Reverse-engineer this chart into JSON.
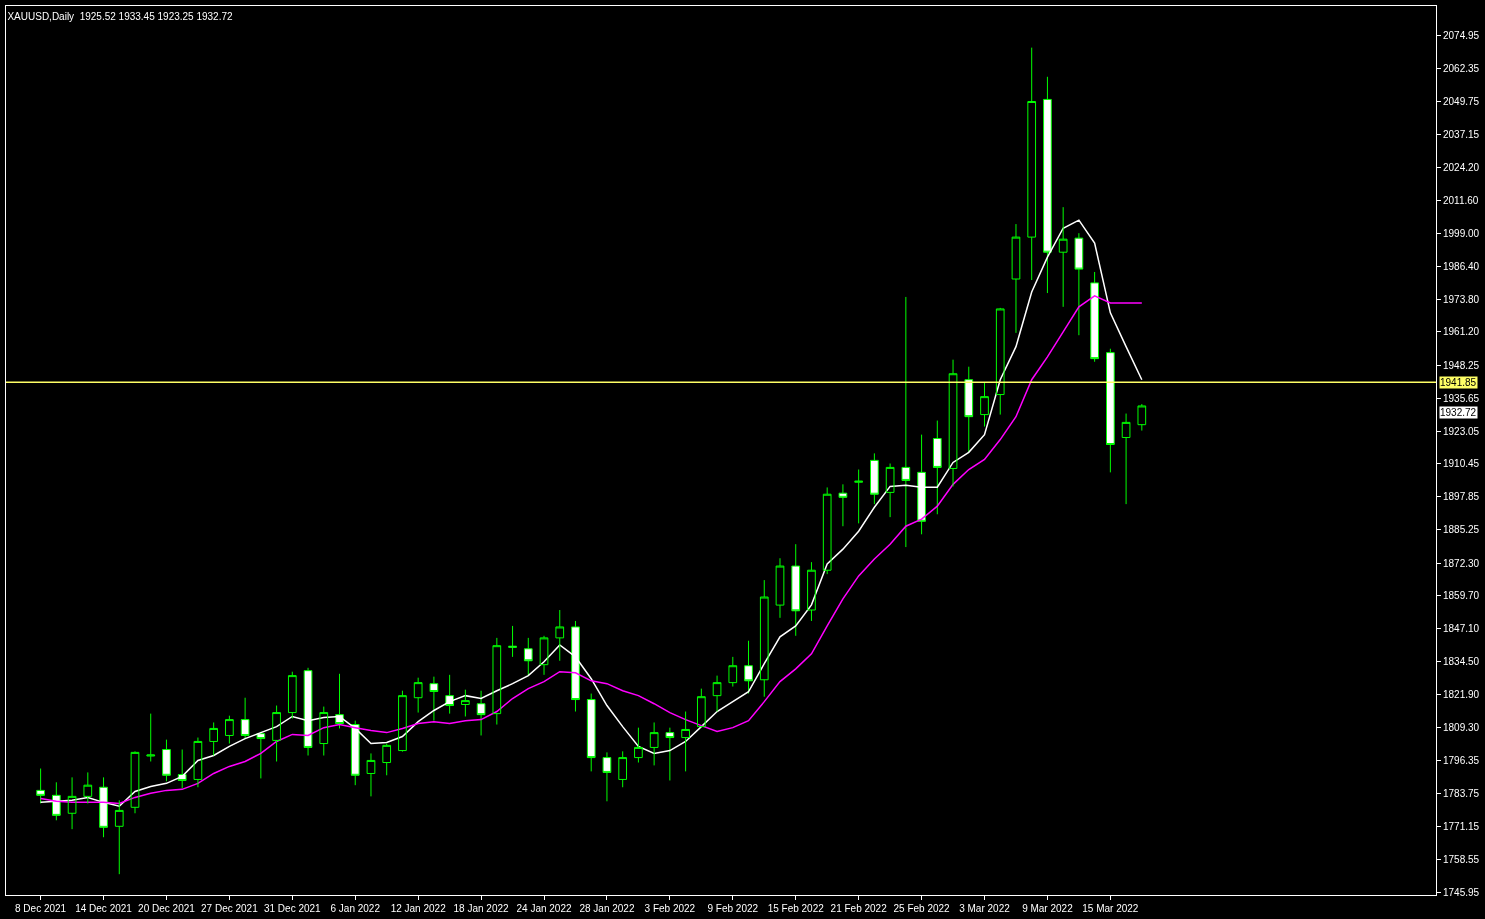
{
  "chart_data": {
    "type": "candlestick",
    "title": "XAUUSD,Daily  1925.52 1933.45 1923.25 1932.72",
    "color": "#00ff00",
    "categories": [
      "8 Dec 2021",
      null,
      null,
      null,
      "14 Dec 2021",
      null,
      null,
      null,
      "20 Dec 2021",
      null,
      null,
      null,
      "27 Dec 2021",
      null,
      null,
      null,
      "31 Dec 2021",
      null,
      null,
      null,
      "6 Jan 2022",
      null,
      null,
      null,
      "12 Jan 2022",
      null,
      null,
      null,
      "18 Jan 2022",
      null,
      null,
      null,
      "24 Jan 2022",
      null,
      null,
      null,
      "28 Jan 2022",
      null,
      null,
      null,
      "3 Feb 2022",
      null,
      null,
      null,
      "9 Feb 2022",
      null,
      null,
      null,
      "15 Feb 2022",
      null,
      null,
      null,
      "21 Feb 2022",
      null,
      null,
      null,
      "25 Feb 2022",
      null,
      null,
      null,
      "3 Mar 2022",
      null,
      null,
      null,
      "9 Mar 2022",
      null,
      null,
      null,
      "15 Mar 2022",
      null,
      null
    ],
    "ohlc": [
      [
        1785.0,
        1793.4,
        1780.0,
        1783.1
      ],
      [
        1783.1,
        1788.1,
        1773.5,
        1775.4
      ],
      [
        1776.2,
        1790.0,
        1770.1,
        1782.7
      ],
      [
        1782.7,
        1791.9,
        1780.0,
        1787.0
      ],
      [
        1786.2,
        1790.0,
        1767.0,
        1770.8
      ],
      [
        1771.2,
        1781.2,
        1752.8,
        1777.3
      ],
      [
        1778.5,
        1800.0,
        1776.2,
        1799.6
      ],
      [
        1798.2,
        1814.5,
        1796.1,
        1798.6
      ],
      [
        1800.7,
        1804.5,
        1788.5,
        1790.8
      ],
      [
        1791.1,
        1800.7,
        1785.8,
        1788.8
      ],
      [
        1789.2,
        1805.3,
        1786.2,
        1803.8
      ],
      [
        1803.8,
        1811.1,
        1798.4,
        1808.8
      ],
      [
        1806.1,
        1813.7,
        1803.0,
        1812.2
      ],
      [
        1812.2,
        1820.6,
        1804.9,
        1806.1
      ],
      [
        1806.8,
        1807.5,
        1789.6,
        1804.9
      ],
      [
        1804.2,
        1817.6,
        1796.1,
        1814.9
      ],
      [
        1814.9,
        1830.6,
        1812.6,
        1829.1
      ],
      [
        1831.0,
        1832.1,
        1798.4,
        1801.5
      ],
      [
        1803.0,
        1817.2,
        1798.4,
        1814.9
      ],
      [
        1814.1,
        1829.8,
        1808.8,
        1810.7
      ],
      [
        1810.3,
        1811.8,
        1787.0,
        1790.8
      ],
      [
        1791.5,
        1799.2,
        1782.7,
        1796.5
      ],
      [
        1795.7,
        1803.0,
        1790.8,
        1802.3
      ],
      [
        1800.3,
        1823.3,
        1799.9,
        1821.4
      ],
      [
        1820.6,
        1828.3,
        1814.9,
        1826.4
      ],
      [
        1826.0,
        1828.7,
        1811.8,
        1823.0
      ],
      [
        1821.4,
        1829.4,
        1814.5,
        1817.6
      ],
      [
        1818.0,
        1823.7,
        1813.4,
        1819.5
      ],
      [
        1818.3,
        1823.3,
        1806.1,
        1814.1
      ],
      [
        1814.5,
        1843.6,
        1810.3,
        1840.6
      ],
      [
        1840.4,
        1848.2,
        1836.3,
        1840.0
      ],
      [
        1839.4,
        1843.6,
        1829.1,
        1834.8
      ],
      [
        1833.3,
        1844.4,
        1829.4,
        1843.6
      ],
      [
        1843.6,
        1854.3,
        1834.8,
        1847.8
      ],
      [
        1847.8,
        1850.1,
        1815.3,
        1819.9
      ],
      [
        1819.9,
        1822.2,
        1792.3,
        1797.6
      ],
      [
        1797.6,
        1799.6,
        1780.8,
        1791.9
      ],
      [
        1789.2,
        1800.0,
        1786.2,
        1797.6
      ],
      [
        1797.6,
        1809.1,
        1795.7,
        1801.5
      ],
      [
        1801.5,
        1811.1,
        1794.6,
        1807.2
      ],
      [
        1807.2,
        1809.1,
        1788.8,
        1805.3
      ],
      [
        1805.3,
        1815.3,
        1792.3,
        1808.4
      ],
      [
        1809.5,
        1824.1,
        1809.1,
        1821.0
      ],
      [
        1821.4,
        1829.1,
        1815.3,
        1826.4
      ],
      [
        1826.4,
        1836.3,
        1824.9,
        1832.9
      ],
      [
        1832.9,
        1842.5,
        1822.2,
        1827.1
      ],
      [
        1827.5,
        1865.8,
        1821.0,
        1859.3
      ],
      [
        1856.2,
        1874.2,
        1851.3,
        1871.2
      ],
      [
        1871.2,
        1879.6,
        1844.4,
        1854.0
      ],
      [
        1854.3,
        1872.7,
        1850.1,
        1869.6
      ],
      [
        1869.6,
        1901.4,
        1868.1,
        1898.8
      ],
      [
        1899.2,
        1902.6,
        1886.5,
        1897.6
      ],
      [
        1903.4,
        1908.3,
        1887.6,
        1903.8
      ],
      [
        1911.8,
        1914.5,
        1895.0,
        1898.8
      ],
      [
        1899.5,
        1910.6,
        1890.0,
        1909.1
      ],
      [
        1909.1,
        1974.6,
        1878.5,
        1904.1
      ],
      [
        1907.2,
        1921.7,
        1883.4,
        1888.4
      ],
      [
        1920.2,
        1927.1,
        1891.1,
        1909.1
      ],
      [
        1908.7,
        1950.5,
        1901.8,
        1945.1
      ],
      [
        1942.8,
        1947.8,
        1914.9,
        1928.6
      ],
      [
        1929.4,
        1941.7,
        1924.8,
        1936.3
      ],
      [
        1937.1,
        1970.4,
        1929.4,
        1970.0
      ],
      [
        1981.5,
        2002.6,
        1960.8,
        1997.6
      ],
      [
        1997.6,
        2070.4,
        1981.1,
        2049.7
      ],
      [
        2050.5,
        2059.2,
        1976.1,
        1991.8
      ],
      [
        1991.8,
        2009.1,
        1970.8,
        1996.8
      ],
      [
        1997.2,
        1999.1,
        1959.9,
        1985.3
      ],
      [
        1980.0,
        1984.2,
        1949.7,
        1950.9
      ],
      [
        1953.2,
        1954.7,
        1907.2,
        1917.9
      ],
      [
        1920.6,
        1929.8,
        1895.0,
        1926.4
      ],
      [
        1925.52,
        1933.45,
        1923.25,
        1932.72
      ]
    ],
    "series": [
      {
        "type": "line",
        "color": "#ffffff",
        "values": [
          1780.4,
          1780.8,
          1781.2,
          1782.3,
          1780.4,
          1778.9,
          1784.6,
          1786.5,
          1787.7,
          1790.4,
          1796.5,
          1798.4,
          1801.9,
          1804.9,
          1807.2,
          1809.5,
          1813.4,
          1811.8,
          1813.0,
          1813.4,
          1808.8,
          1803.0,
          1803.4,
          1805.7,
          1811.4,
          1815.7,
          1819.1,
          1821.4,
          1820.3,
          1823.3,
          1826.0,
          1829.1,
          1834.4,
          1840.9,
          1836.3,
          1827.9,
          1817.6,
          1809.5,
          1801.9,
          1799.2,
          1800.3,
          1803.8,
          1809.5,
          1815.3,
          1819.1,
          1822.9,
          1833.7,
          1844.0,
          1848.2,
          1856.3,
          1872.0,
          1877.7,
          1884.6,
          1893.8,
          1901.8,
          1902.2,
          1901.5,
          1901.5,
          1911.0,
          1914.9,
          1921.7,
          1942.8,
          1955.5,
          1976.5,
          1989.9,
          2001.0,
          2004.1,
          1995.3,
          1968.5,
          1955.5,
          1942.8
        ]
      },
      {
        "type": "line",
        "color": "#ff00ff",
        "values": [
          1781.9,
          1780.8,
          1780.4,
          1780.4,
          1780.4,
          1780.0,
          1782.3,
          1783.9,
          1785.0,
          1785.4,
          1787.7,
          1791.5,
          1794.2,
          1796.1,
          1799.2,
          1803.8,
          1806.5,
          1806.1,
          1809.1,
          1810.3,
          1809.1,
          1808.0,
          1807.2,
          1808.8,
          1810.7,
          1811.4,
          1810.7,
          1811.8,
          1812.2,
          1815.3,
          1820.3,
          1824.1,
          1826.8,
          1830.6,
          1830.2,
          1827.1,
          1826.0,
          1823.3,
          1821.4,
          1818.3,
          1814.9,
          1812.2,
          1809.9,
          1807.6,
          1809.1,
          1811.8,
          1819.1,
          1826.8,
          1831.7,
          1837.5,
          1848.2,
          1858.6,
          1867.4,
          1873.9,
          1879.6,
          1886.5,
          1889.2,
          1894.2,
          1902.6,
          1908.3,
          1912.2,
          1919.8,
          1928.6,
          1942.8,
          1951.6,
          1961.2,
          1970.8,
          1975.0,
          1972.3,
          1972.3,
          1972.3
        ]
      }
    ],
    "ylim": [
      1744.8,
      2086.4
    ],
    "yticks": [
      {
        "value": 2074.95,
        "label": "2074.95"
      },
      {
        "value": 2062.35,
        "label": "2062.35"
      },
      {
        "value": 2049.75,
        "label": "2049.75"
      },
      {
        "value": 2037.15,
        "label": "2037.15"
      },
      {
        "value": 2024.2,
        "label": "2024.20"
      },
      {
        "value": 2011.6,
        "label": "2011.60"
      },
      {
        "value": 1999.0,
        "label": "1999.00"
      },
      {
        "value": 1986.4,
        "label": "1986.40"
      },
      {
        "value": 1973.8,
        "label": "1973.80"
      },
      {
        "value": 1961.2,
        "label": "1961.20"
      },
      {
        "value": 1948.25,
        "label": "1948.25"
      },
      {
        "value": 1935.65,
        "label": "1935.65"
      },
      {
        "value": 1923.05,
        "label": "1923.05"
      },
      {
        "value": 1910.45,
        "label": "1910.45"
      },
      {
        "value": 1897.85,
        "label": "1897.85"
      },
      {
        "value": 1885.25,
        "label": "1885.25"
      },
      {
        "value": 1872.3,
        "label": "1872.30"
      },
      {
        "value": 1859.7,
        "label": "1859.70"
      },
      {
        "value": 1847.1,
        "label": "1847.10"
      },
      {
        "value": 1834.5,
        "label": "1834.50"
      },
      {
        "value": 1821.9,
        "label": "1821.90"
      },
      {
        "value": 1809.3,
        "label": "1809.30"
      },
      {
        "value": 1796.35,
        "label": "1796.35"
      },
      {
        "value": 1783.75,
        "label": "1783.75"
      },
      {
        "value": 1771.15,
        "label": "1771.15"
      },
      {
        "value": 1758.55,
        "label": "1758.55"
      },
      {
        "value": 1745.95,
        "label": "1745.95"
      }
    ],
    "ref_lines": [
      {
        "axis": "y",
        "value": 1941.85,
        "label": "1941.85",
        "color": "#ffff66"
      }
    ],
    "annotations": [
      "1932.72"
    ]
  }
}
